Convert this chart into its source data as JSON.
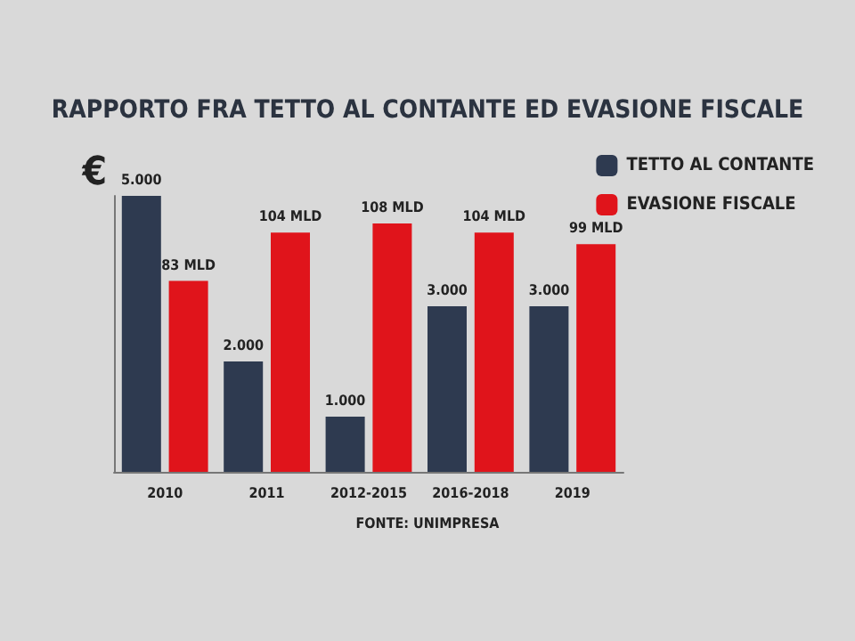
{
  "chart_data": {
    "type": "bar",
    "title": "RAPPORTO FRA TETTO AL CONTANTE ED EVASIONE FISCALE",
    "ylabel": "€",
    "categories": [
      "2010",
      "2011",
      "2012-2015",
      "2016-2018",
      "2019"
    ],
    "series": [
      {
        "name": "TETTO AL CONTANTE",
        "color": "#2e3a50",
        "values": [
          5000,
          2000,
          1000,
          3000,
          3000
        ],
        "value_labels": [
          "5.000",
          "2.000",
          "1.000",
          "3.000",
          "3.000"
        ]
      },
      {
        "name": "EVASIONE FISCALE",
        "color": "#e0141b",
        "axis": "y2",
        "values": [
          83,
          104,
          108,
          104,
          99
        ],
        "value_labels": [
          "83 MLD",
          "104 MLD",
          "108 MLD",
          "104 MLD",
          "99 MLD"
        ]
      }
    ],
    "legend": "top right",
    "grid": false,
    "annotations": [
      "FONTE: UNIMPRESA"
    ]
  }
}
